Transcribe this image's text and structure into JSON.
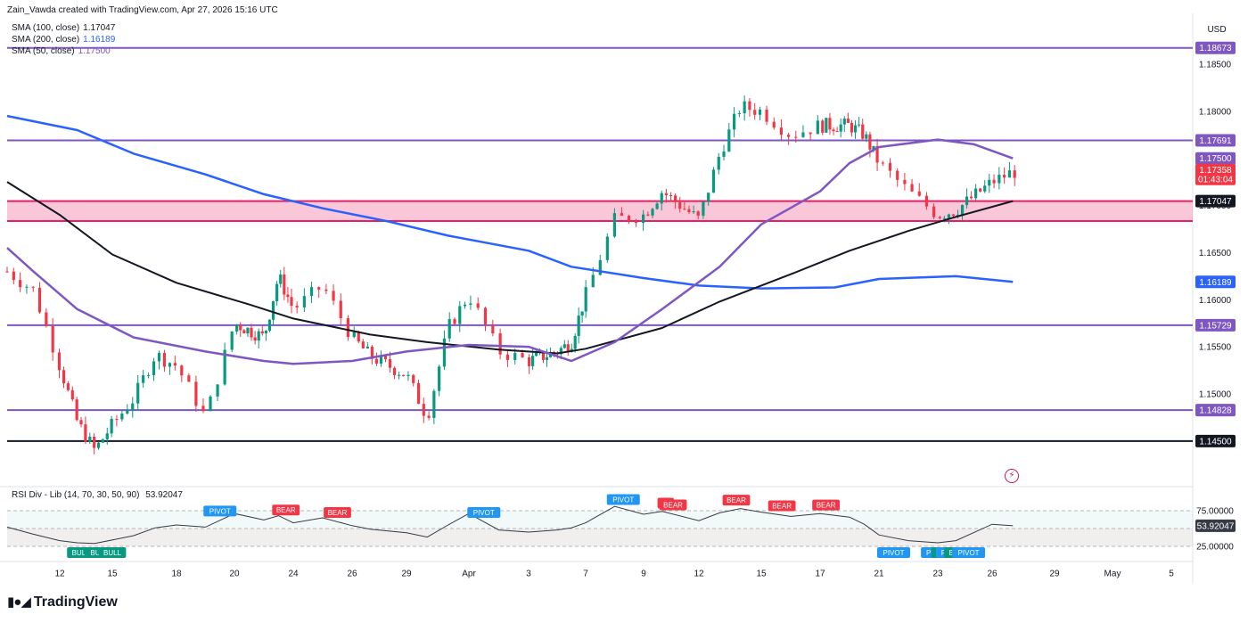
{
  "header": {
    "attribution": "Zain_Vawda created with TradingView.com, Apr 27, 2026 15:16 UTC"
  },
  "indicators": [
    {
      "label": "SMA (100, close)",
      "value": "1.17047",
      "color": "#000000"
    },
    {
      "label": "SMA (200, close)",
      "value": "1.16189",
      "color": "#2962ff"
    },
    {
      "label": "SMA (50, close)",
      "value": "1.17500",
      "color": "#7e57c2"
    }
  ],
  "currency": "USD",
  "brand": "TradingView",
  "rsi": {
    "title": "RSI Div - Lib (14, 70, 30, 50, 90)",
    "value": "53.92047",
    "axis_labels": [
      "75.00000",
      "25.00000"
    ],
    "current_label": "53.92047",
    "markers": [
      {
        "text": "PIVOT",
        "kind": "pivot-high",
        "date": "Mar 19.5"
      },
      {
        "text": "BEAR",
        "kind": "bear",
        "date": "Mar 23.5"
      },
      {
        "text": "BEAR",
        "kind": "bear",
        "date": "Mar 25.5"
      },
      {
        "text": "PIVOT",
        "kind": "pivot-high",
        "date": "Apr 1.5"
      },
      {
        "text": "PIVOT",
        "kind": "pivot-high",
        "date": "Apr 8.3"
      },
      {
        "text": "BE",
        "kind": "bear",
        "date": "Apr 10.2"
      },
      {
        "text": "BEAR",
        "kind": "bear",
        "date": "Apr 10.6"
      },
      {
        "text": "BEAR",
        "kind": "bear",
        "date": "Apr 13.8"
      },
      {
        "text": "BEAR",
        "kind": "bear",
        "date": "Apr 15.7"
      },
      {
        "text": "BEAR",
        "kind": "bear",
        "date": "Apr 17.4"
      },
      {
        "text": "BULL",
        "kind": "bull",
        "date": "Mar 13.2"
      },
      {
        "text": "BULI",
        "kind": "bull",
        "date": "Mar 14.2"
      },
      {
        "text": "BULL",
        "kind": "bull",
        "date": "Mar 15.0"
      },
      {
        "text": "PIVOT",
        "kind": "pivot-low",
        "date": "Apr 21.5"
      },
      {
        "text": "PIV",
        "kind": "pivot-low",
        "date": "Apr 22.8"
      },
      {
        "text": "BI",
        "kind": "bull",
        "date": "Apr 23.1"
      },
      {
        "text": "PIV",
        "kind": "pivot-low",
        "date": "Apr 23.5"
      },
      {
        "text": "BI",
        "kind": "bull",
        "date": "Apr 23.8"
      },
      {
        "text": "PIVOT",
        "kind": "pivot-low",
        "date": "Apr 24.7"
      }
    ]
  },
  "chart_data": {
    "type": "candlestick",
    "symbol_quote": "USD",
    "timeframe": "hourly",
    "y_axis": {
      "ticks": [
        "1.18500",
        "1.18000",
        "1.17500",
        "1.17000",
        "1.16500",
        "1.16000",
        "1.15500",
        "1.15000"
      ],
      "range": [
        1.1405,
        1.1895
      ]
    },
    "x_axis": {
      "ticks": [
        "12",
        "15",
        "18",
        "20",
        "24",
        "26",
        "29",
        "Apr",
        "3",
        "7",
        "9",
        "12",
        "15",
        "17",
        "21",
        "23",
        "26",
        "29",
        "May",
        "5"
      ]
    },
    "horizontal_levels": [
      {
        "price": 1.18673,
        "label": "1.18673",
        "color": "#7e57c2"
      },
      {
        "price": 1.17691,
        "label": "1.17691",
        "color": "#7e57c2"
      },
      {
        "price": 1.15729,
        "label": "1.15729",
        "color": "#7e57c2"
      },
      {
        "price": 1.14828,
        "label": "1.14828",
        "color": "#7e57c2"
      },
      {
        "price": 1.145,
        "label": "1.14500",
        "color": "#131722"
      }
    ],
    "zone": {
      "top": 1.17047,
      "bottom": 1.16835,
      "color": "#e91e63"
    },
    "price_labels": [
      {
        "label": "1.17500",
        "color": "#7e57c2",
        "price": 1.175
      },
      {
        "label": "1.17358",
        "sub": "01:43:04",
        "color": "#f23645",
        "price": 1.17358
      },
      {
        "label": "1.17047",
        "color": "#131722",
        "price": 1.17047
      },
      {
        "label": "1.16189",
        "color": "#2962ff",
        "price": 1.16189
      }
    ],
    "key_closes": [
      [
        "Mar 10",
        1.163
      ],
      [
        "Mar 11",
        1.161
      ],
      [
        "Mar 12",
        1.153
      ],
      [
        "Mar 13",
        1.147
      ],
      [
        "Mar 14",
        1.144
      ],
      [
        "Mar 16",
        1.1495
      ],
      [
        "Mar 17",
        1.1542
      ],
      [
        "Mar 18",
        1.153
      ],
      [
        "Mar 19",
        1.1475
      ],
      [
        "Mar 20",
        1.1575
      ],
      [
        "Mar 22",
        1.156
      ],
      [
        "Mar 23",
        1.1625
      ],
      [
        "Mar 24",
        1.159
      ],
      [
        "Mar 25",
        1.1615
      ],
      [
        "Mar 26",
        1.156
      ],
      [
        "Mar 27",
        1.154
      ],
      [
        "Mar 29",
        1.152
      ],
      [
        "Mar 30",
        1.1475
      ],
      [
        "Mar 31",
        1.157
      ],
      [
        "Apr 1",
        1.1605
      ],
      [
        "Apr 2",
        1.1545
      ],
      [
        "Apr 3",
        1.1535
      ],
      [
        "Apr 5",
        1.1545
      ],
      [
        "Apr 6",
        1.1555
      ],
      [
        "Apr 7",
        1.1605
      ],
      [
        "Apr 8",
        1.1685
      ],
      [
        "Apr 9",
        1.169
      ],
      [
        "Apr 10",
        1.1715
      ],
      [
        "Apr 12",
        1.1685
      ],
      [
        "Apr 13",
        1.1755
      ],
      [
        "Apr 14",
        1.1805
      ],
      [
        "Apr 15",
        1.18
      ],
      [
        "Apr 16",
        1.1775
      ],
      [
        "Apr 17",
        1.1785
      ],
      [
        "Apr 19",
        1.1785
      ],
      [
        "Apr 20",
        1.1775
      ],
      [
        "Apr 21",
        1.1745
      ],
      [
        "Apr 22",
        1.1715
      ],
      [
        "Apr 23",
        1.169
      ],
      [
        "Apr 24",
        1.1695
      ],
      [
        "Apr 26",
        1.1725
      ],
      [
        "Apr 27",
        1.17358
      ]
    ],
    "sma50": [
      [
        "Mar 10",
        1.1655
      ],
      [
        "Mar 11",
        1.163
      ],
      [
        "Mar 13",
        1.159
      ],
      [
        "Mar 16",
        1.156
      ],
      [
        "Mar 19",
        1.1545
      ],
      [
        "Mar 22",
        1.1535
      ],
      [
        "Mar 24",
        1.1532
      ],
      [
        "Mar 26",
        1.1535
      ],
      [
        "Mar 29",
        1.1545
      ],
      [
        "Apr 1",
        1.1552
      ],
      [
        "Apr 3",
        1.155
      ],
      [
        "Apr 6",
        1.1535
      ],
      [
        "Apr 8",
        1.1555
      ],
      [
        "Apr 10",
        1.159
      ],
      [
        "Apr 13",
        1.1635
      ],
      [
        "Apr 15",
        1.168
      ],
      [
        "Apr 17",
        1.1715
      ],
      [
        "Apr 19",
        1.1745
      ],
      [
        "Apr 21",
        1.1762
      ],
      [
        "Apr 23",
        1.177
      ],
      [
        "Apr 25",
        1.1765
      ],
      [
        "Apr 27",
        1.175
      ]
    ],
    "sma100": [
      [
        "Mar 10",
        1.1725
      ],
      [
        "Mar 12",
        1.169
      ],
      [
        "Mar 15",
        1.1648
      ],
      [
        "Mar 18",
        1.1618
      ],
      [
        "Mar 21",
        1.1595
      ],
      [
        "Mar 24",
        1.158
      ],
      [
        "Mar 27",
        1.1563
      ],
      [
        "Mar 30",
        1.1555
      ],
      [
        "Apr 2",
        1.1547
      ],
      [
        "Apr 5",
        1.1543
      ],
      [
        "Apr 7",
        1.1548
      ],
      [
        "Apr 10",
        1.157
      ],
      [
        "Apr 13",
        1.1598
      ],
      [
        "Apr 16",
        1.1627
      ],
      [
        "Apr 19",
        1.1652
      ],
      [
        "Apr 22",
        1.1673
      ],
      [
        "Apr 24",
        1.1688
      ],
      [
        "Apr 27",
        1.17047
      ]
    ],
    "sma200": [
      [
        "Mar 10",
        1.1795
      ],
      [
        "Mar 13",
        1.178
      ],
      [
        "Mar 16",
        1.1755
      ],
      [
        "Mar 19",
        1.1733
      ],
      [
        "Mar 22",
        1.1712
      ],
      [
        "Mar 25",
        1.1697
      ],
      [
        "Mar 28",
        1.1683
      ],
      [
        "Mar 31",
        1.1668
      ],
      [
        "Apr 3",
        1.1652
      ],
      [
        "Apr 6",
        1.1635
      ],
      [
        "Apr 9",
        1.1623
      ],
      [
        "Apr 12",
        1.1615
      ],
      [
        "Apr 15",
        1.1612
      ],
      [
        "Apr 18",
        1.1613
      ],
      [
        "Apr 21",
        1.1622
      ],
      [
        "Apr 24",
        1.1625
      ],
      [
        "Apr 27",
        1.16189
      ]
    ],
    "rsi_series": [
      [
        "Mar 10",
        52
      ],
      [
        "Mar 11",
        42
      ],
      [
        "Mar 12",
        33
      ],
      [
        "Mar 13",
        30
      ],
      [
        "Mar 14",
        29
      ],
      [
        "Mar 16",
        40
      ],
      [
        "Mar 17",
        51
      ],
      [
        "Mar 18",
        55
      ],
      [
        "Mar 19",
        52
      ],
      [
        "Mar 20",
        71
      ],
      [
        "Mar 22",
        62
      ],
      [
        "Mar 23",
        68
      ],
      [
        "Mar 24",
        58
      ],
      [
        "Mar 25",
        65
      ],
      [
        "Mar 26",
        54
      ],
      [
        "Mar 27",
        49
      ],
      [
        "Mar 29",
        44
      ],
      [
        "Mar 30",
        38
      ],
      [
        "Mar 31",
        55
      ],
      [
        "Apr 1",
        71
      ],
      [
        "Apr 2",
        48
      ],
      [
        "Apr 3",
        45
      ],
      [
        "Apr 5",
        48
      ],
      [
        "Apr 6",
        51
      ],
      [
        "Apr 7",
        58
      ],
      [
        "Apr 8",
        81
      ],
      [
        "Apr 9",
        70
      ],
      [
        "Apr 10",
        74
      ],
      [
        "Apr 12",
        61
      ],
      [
        "Apr 13",
        72
      ],
      [
        "Apr 14",
        78
      ],
      [
        "Apr 15",
        73
      ],
      [
        "Apr 16",
        67
      ],
      [
        "Apr 17",
        71
      ],
      [
        "Apr 19",
        66
      ],
      [
        "Apr 20",
        56
      ],
      [
        "Apr 21",
        41
      ],
      [
        "Apr 22",
        33
      ],
      [
        "Apr 23",
        30
      ],
      [
        "Apr 24",
        33
      ],
      [
        "Apr 26",
        56
      ],
      [
        "Apr 27",
        53.9
      ]
    ]
  }
}
